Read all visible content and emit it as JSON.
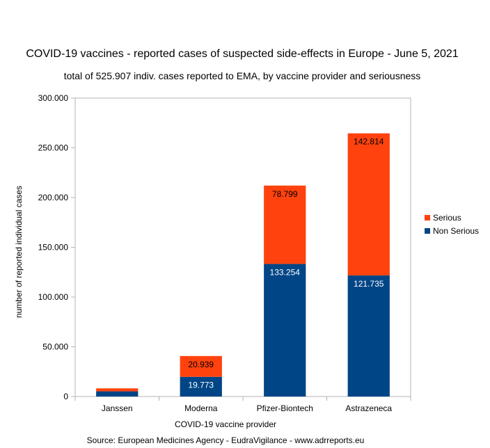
{
  "chart_data": {
    "type": "bar",
    "stacked": true,
    "title": "COVID-19 vaccines - reported cases of suspected side-effects in Europe - June 5, 2021",
    "subtitle": "total of 525.907 indiv. cases reported to EMA, by vaccine provider and seriousness",
    "xlabel": "COVID-19 vaccine provider",
    "ylabel": "number of reported individual cases",
    "categories": [
      "Janssen",
      "Moderna",
      "Pfizer-Biontech",
      "Astrazeneca"
    ],
    "series": [
      {
        "name": "Non Serious",
        "color": "#004586",
        "values": [
          5200,
          19773,
          133254,
          121735
        ],
        "data_labels": [
          "",
          "19.773",
          "133.254",
          "121.735"
        ],
        "label_color": "#ffffff"
      },
      {
        "name": "Serious",
        "color": "#ff420e",
        "values": [
          3000,
          20939,
          78799,
          142814
        ],
        "data_labels": [
          "",
          "20.939",
          "78.799",
          "142.814"
        ],
        "label_color": "#000000"
      }
    ],
    "ylim": [
      0,
      300000
    ],
    "yticks": [
      0,
      50000,
      100000,
      150000,
      200000,
      250000,
      300000
    ],
    "ytick_labels": [
      "0",
      "50.000",
      "100.000",
      "150.000",
      "200.000",
      "250.000",
      "300.000"
    ],
    "grid": false,
    "legend_position": "right",
    "legend_order": [
      "Serious",
      "Non Serious"
    ],
    "source": "Source: European Medicines Agency - EudraVigilance - www.adrreports.eu"
  }
}
